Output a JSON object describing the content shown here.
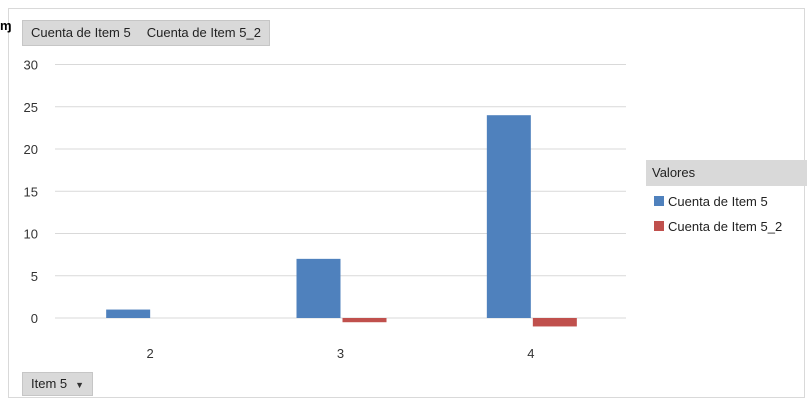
{
  "corner_glyph": "ɱ",
  "field_buttons": [
    "Cuenta de Item 5",
    "Cuenta de Item 5_2"
  ],
  "axis_button": {
    "label": "Item 5"
  },
  "legend": {
    "title": "Valores",
    "items": [
      {
        "name": "Cuenta de Item 5",
        "color": "#4f81bd"
      },
      {
        "name": "Cuenta de Item 5_2",
        "color": "#c0504d"
      }
    ]
  },
  "chart_data": {
    "type": "bar",
    "categories": [
      "2",
      "3",
      "4"
    ],
    "series": [
      {
        "name": "Cuenta de Item 5",
        "color": "#4f81bd",
        "values": [
          1,
          7,
          24
        ]
      },
      {
        "name": "Cuenta de Item 5_2",
        "color": "#c0504d",
        "values": [
          0,
          -0.5,
          -1
        ]
      }
    ],
    "yticks": [
      0,
      5,
      10,
      15,
      20,
      25,
      30
    ],
    "ylim": [
      -1,
      30
    ],
    "grid": true,
    "legend_position": "right"
  }
}
